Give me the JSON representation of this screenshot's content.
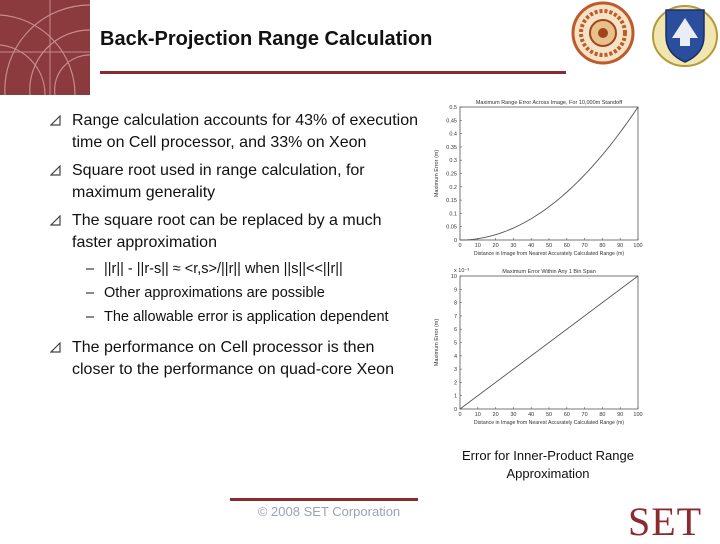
{
  "slide": {
    "title": "Back-Projection Range Calculation",
    "bullets": [
      "Range calculation accounts for 43% of execution time on Cell processor, and 33% on Xeon",
      "Square root used in range calculation, for maximum generality",
      "The square root can be replaced by a much faster approximation"
    ],
    "sub_bullets": [
      "||r|| - ||r-s|| ≈ <r,s>/||r|| when ||s||<<||r||",
      "Other approximations are possible",
      "The allowable error is application dependent"
    ],
    "last_bullet": "The performance on Cell processor is then closer to the performance on quad-core Xeon",
    "caption": "Error for Inner-Product Range Approximation",
    "copyright": "© 2008 SET Corporation",
    "logo_text": "SET"
  },
  "colors": {
    "accent": "#8b2b2f",
    "corner": "#8b3a3e",
    "copyright": "#9aa3b5"
  },
  "icons": [
    "triangle-bullet-icon",
    "university-seal-icon",
    "air-force-shield-icon",
    "set-logo"
  ],
  "chart_data": [
    {
      "type": "line",
      "title": "Maximum Range Error Across Image, For 10,000m Standoff",
      "xlabel": "Distance in Image from Nearest Accurately Calculated Range (m)",
      "ylabel": "Maximum Error (m)",
      "xlim": [
        0,
        100
      ],
      "ylim": [
        0,
        0.5
      ],
      "xticks": [
        0,
        10,
        20,
        30,
        40,
        50,
        60,
        70,
        80,
        90,
        100
      ],
      "yticks": [
        0,
        0.05,
        0.1,
        0.15,
        0.2,
        0.25,
        0.3,
        0.35,
        0.4,
        0.45,
        0.5
      ],
      "series": [
        {
          "x": [
            0,
            10,
            20,
            30,
            40,
            50,
            60,
            70,
            80,
            90,
            100
          ],
          "y": [
            0,
            0.005,
            0.02,
            0.045,
            0.08,
            0.125,
            0.18,
            0.245,
            0.32,
            0.405,
            0.5
          ]
        }
      ]
    },
    {
      "type": "line",
      "title": "Maximum Error Within Any 1 Bin Span",
      "xlabel": "Distance in Image from Nearest Accurately Calculated Range (m)",
      "ylabel": "Maximum Error (m)",
      "exponent": "x 10⁻³",
      "xlim": [
        0,
        100
      ],
      "ylim": [
        0,
        10
      ],
      "xticks": [
        0,
        10,
        20,
        30,
        40,
        50,
        60,
        70,
        80,
        90,
        100
      ],
      "yticks": [
        0,
        1,
        2,
        3,
        4,
        5,
        6,
        7,
        8,
        9,
        10
      ],
      "series": [
        {
          "x": [
            0,
            100
          ],
          "y": [
            0,
            10
          ]
        }
      ]
    }
  ]
}
